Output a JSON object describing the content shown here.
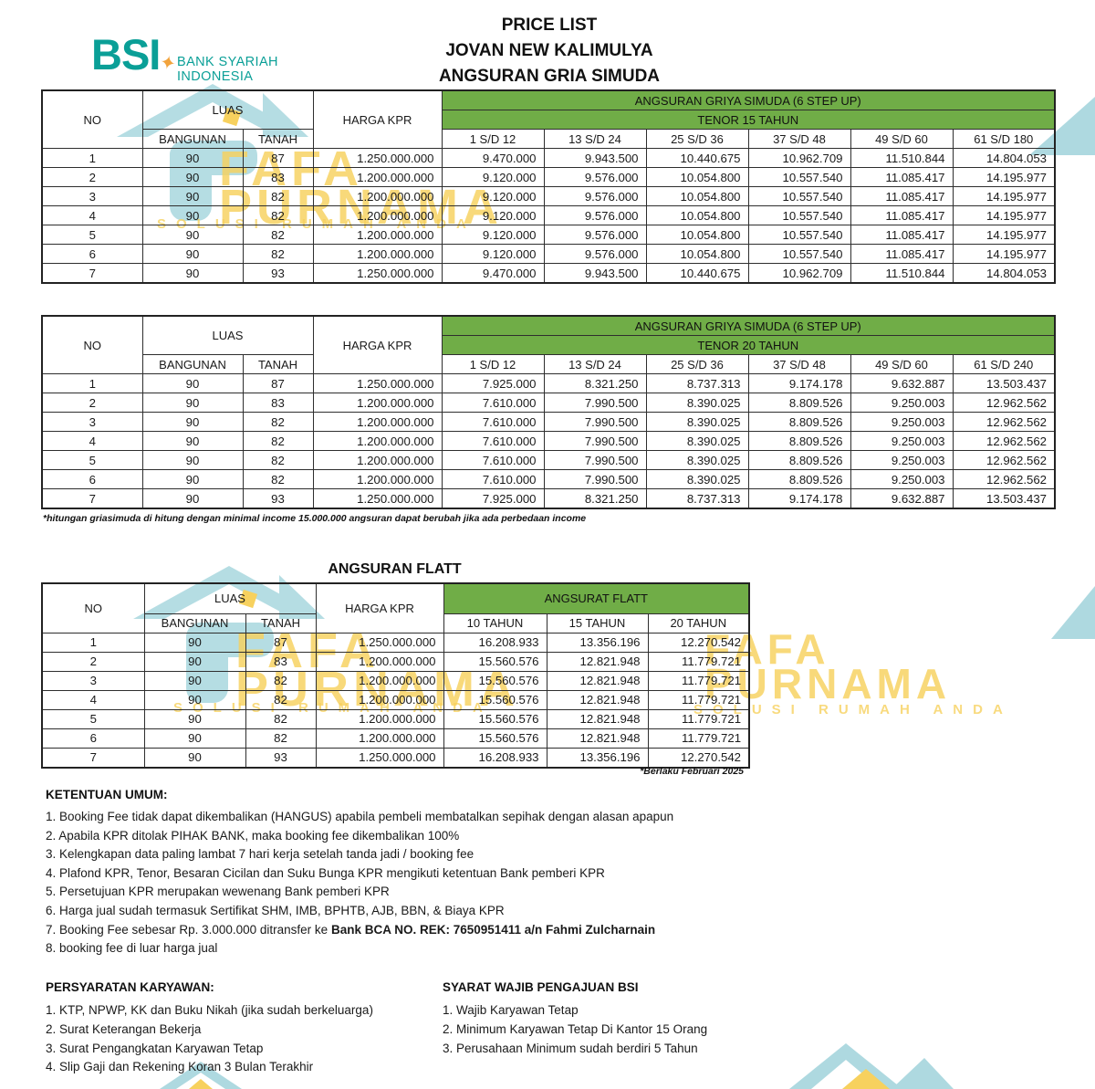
{
  "colors": {
    "green_header": "#70ad47",
    "bsi_teal": "#0a9f97",
    "star_orange": "#f2a33c",
    "watermark_teal": "#b5dde3",
    "watermark_yellow": "#f7d15e"
  },
  "logo": {
    "abbr": "BSI",
    "star": "✦",
    "name_line1": "BANK SYARIAH",
    "name_line2": "INDONESIA"
  },
  "title": {
    "line1": "PRICE LIST",
    "line2": "JOVAN NEW KALIMULYA",
    "line3": "ANGSURAN GRIA SIMUDA"
  },
  "watermark": {
    "brand_line1": "FAFA",
    "brand_line2": "PURNAMA",
    "tagline": "SOLUSI RUMAH ANDA"
  },
  "table_common": {
    "no": "NO",
    "luas": "LUAS",
    "bangunan": "BANGUNAN",
    "tanah": "TANAH",
    "harga": "HARGA KPR"
  },
  "table15": {
    "group": "ANGSURAN GRIYA SIMUDA (6 STEP UP)",
    "tenor": "TENOR 15 TAHUN",
    "ranges": [
      "1 S/D 12",
      "13 S/D 24",
      "25 S/D 36",
      "37 S/D 48",
      "49 S/D 60",
      "61 S/D 180"
    ],
    "rows": [
      [
        "1",
        "90",
        "87",
        "1.250.000.000",
        "9.470.000",
        "9.943.500",
        "10.440.675",
        "10.962.709",
        "11.510.844",
        "14.804.053"
      ],
      [
        "2",
        "90",
        "83",
        "1.200.000.000",
        "9.120.000",
        "9.576.000",
        "10.054.800",
        "10.557.540",
        "11.085.417",
        "14.195.977"
      ],
      [
        "3",
        "90",
        "82",
        "1.200.000.000",
        "9.120.000",
        "9.576.000",
        "10.054.800",
        "10.557.540",
        "11.085.417",
        "14.195.977"
      ],
      [
        "4",
        "90",
        "82",
        "1.200.000.000",
        "9.120.000",
        "9.576.000",
        "10.054.800",
        "10.557.540",
        "11.085.417",
        "14.195.977"
      ],
      [
        "5",
        "90",
        "82",
        "1.200.000.000",
        "9.120.000",
        "9.576.000",
        "10.054.800",
        "10.557.540",
        "11.085.417",
        "14.195.977"
      ],
      [
        "6",
        "90",
        "82",
        "1.200.000.000",
        "9.120.000",
        "9.576.000",
        "10.054.800",
        "10.557.540",
        "11.085.417",
        "14.195.977"
      ],
      [
        "7",
        "90",
        "93",
        "1.250.000.000",
        "9.470.000",
        "9.943.500",
        "10.440.675",
        "10.962.709",
        "11.510.844",
        "14.804.053"
      ]
    ]
  },
  "table20": {
    "group": "ANGSURAN GRIYA SIMUDA (6 STEP UP)",
    "tenor": "TENOR 20 TAHUN",
    "ranges": [
      "1 S/D 12",
      "13 S/D 24",
      "25 S/D 36",
      "37 S/D 48",
      "49 S/D 60",
      "61 S/D 240"
    ],
    "rows": [
      [
        "1",
        "90",
        "87",
        "1.250.000.000",
        "7.925.000",
        "8.321.250",
        "8.737.313",
        "9.174.178",
        "9.632.887",
        "13.503.437"
      ],
      [
        "2",
        "90",
        "83",
        "1.200.000.000",
        "7.610.000",
        "7.990.500",
        "8.390.025",
        "8.809.526",
        "9.250.003",
        "12.962.562"
      ],
      [
        "3",
        "90",
        "82",
        "1.200.000.000",
        "7.610.000",
        "7.990.500",
        "8.390.025",
        "8.809.526",
        "9.250.003",
        "12.962.562"
      ],
      [
        "4",
        "90",
        "82",
        "1.200.000.000",
        "7.610.000",
        "7.990.500",
        "8.390.025",
        "8.809.526",
        "9.250.003",
        "12.962.562"
      ],
      [
        "5",
        "90",
        "82",
        "1.200.000.000",
        "7.610.000",
        "7.990.500",
        "8.390.025",
        "8.809.526",
        "9.250.003",
        "12.962.562"
      ],
      [
        "6",
        "90",
        "82",
        "1.200.000.000",
        "7.610.000",
        "7.990.500",
        "8.390.025",
        "8.809.526",
        "9.250.003",
        "12.962.562"
      ],
      [
        "7",
        "90",
        "93",
        "1.250.000.000",
        "7.925.000",
        "8.321.250",
        "8.737.313",
        "9.174.178",
        "9.632.887",
        "13.503.437"
      ]
    ]
  },
  "flatt": {
    "title": "ANGSURAN FLATT",
    "group": "ANGSURAT FLATT",
    "cols": [
      "10 TAHUN",
      "15 TAHUN",
      "20 TAHUN"
    ],
    "rows": [
      [
        "1",
        "90",
        "87",
        "1.250.000.000",
        "16.208.933",
        "13.356.196",
        "12.270.542"
      ],
      [
        "2",
        "90",
        "83",
        "1.200.000.000",
        "15.560.576",
        "12.821.948",
        "11.779.721"
      ],
      [
        "3",
        "90",
        "82",
        "1.200.000.000",
        "15.560.576",
        "12.821.948",
        "11.779.721"
      ],
      [
        "4",
        "90",
        "82",
        "1.200.000.000",
        "15.560.576",
        "12.821.948",
        "11.779.721"
      ],
      [
        "5",
        "90",
        "82",
        "1.200.000.000",
        "15.560.576",
        "12.821.948",
        "11.779.721"
      ],
      [
        "6",
        "90",
        "82",
        "1.200.000.000",
        "15.560.576",
        "12.821.948",
        "11.779.721"
      ],
      [
        "7",
        "90",
        "93",
        "1.250.000.000",
        "16.208.933",
        "13.356.196",
        "12.270.542"
      ]
    ]
  },
  "notes": {
    "simuda": "*hitungan griasimuda di hitung dengan minimal income 15.000.000 angsuran dapat berubah jika ada perbedaan income",
    "flatt": "*Berlaku Februari 2025"
  },
  "ketentuan": {
    "heading": "KETENTUAN UMUM:",
    "items": [
      "1. Booking Fee tidak dapat dikembalikan (HANGUS) apabila pembeli membatalkan sepihak dengan alasan apapun",
      "2. Apabila KPR ditolak PIHAK BANK, maka booking fee dikembalikan 100%",
      "3. Kelengkapan data paling lambat 7 hari kerja setelah tanda jadi / booking fee",
      "4. Plafond KPR, Tenor, Besaran Cicilan dan Suku Bunga KPR mengikuti ketentuan Bank pemberi KPR",
      "5. Persetujuan KPR merupakan wewenang Bank pemberi KPR",
      "6. Harga jual sudah termasuk Sertifikat SHM, IMB, BPHTB, AJB, BBN, & Biaya KPR"
    ],
    "item7_prefix": "7. Booking Fee sebesar Rp. 3.000.000 ditransfer ke ",
    "item7_bold": "Bank BCA NO. REK: 7650951411 a/n Fahmi Zulcharnain",
    "item8": "8. booking fee di luar harga jual"
  },
  "persyaratan": {
    "heading": "PERSYARATAN KARYAWAN:",
    "items": [
      "1. KTP, NPWP, KK dan Buku Nikah (jika sudah berkeluarga)",
      "2. Surat Keterangan Bekerja",
      "3. Surat Pengangkatan Karyawan Tetap",
      "4. Slip Gaji dan Rekening Koran 3 Bulan Terakhir"
    ]
  },
  "syarat_bsi": {
    "heading": "SYARAT WAJIB PENGAJUAN BSI",
    "items": [
      "1. Wajib Karyawan Tetap",
      "2. Minimum Karyawan Tetap Di Kantor 15 Orang",
      "3. Perusahaan Minimum sudah berdiri 5 Tahun"
    ]
  }
}
